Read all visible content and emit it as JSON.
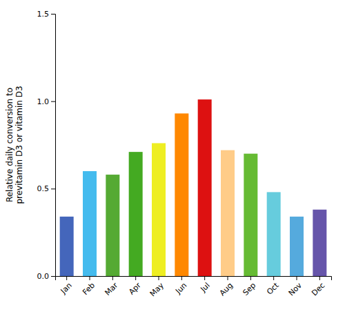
{
  "chart_data": {
    "type": "bar",
    "ylabel": "Relative daily conversion to\nprevitamin D3 or vitamin D3",
    "categories": [
      "Jan",
      "Feb",
      "Mar",
      "Apr",
      "May",
      "Jun",
      "Jul",
      "Aug",
      "Sep",
      "Oct",
      "Nov",
      "Dec"
    ],
    "values": [
      0.34,
      0.6,
      0.58,
      0.71,
      0.76,
      0.93,
      1.01,
      0.72,
      0.7,
      0.48,
      0.34,
      0.38
    ],
    "colors": [
      "#4466bb",
      "#44bbee",
      "#55aa33",
      "#44aa22",
      "#eeee22",
      "#ff8800",
      "#dd1111",
      "#ffcc88",
      "#66bb33",
      "#66ccdd",
      "#55aadd",
      "#6655aa"
    ],
    "ylim": [
      0,
      1.5
    ],
    "yticks": [
      {
        "value": 0,
        "label": "0.0"
      },
      0.5,
      {
        "value": 1,
        "label": "1.0"
      },
      1.5
    ]
  }
}
